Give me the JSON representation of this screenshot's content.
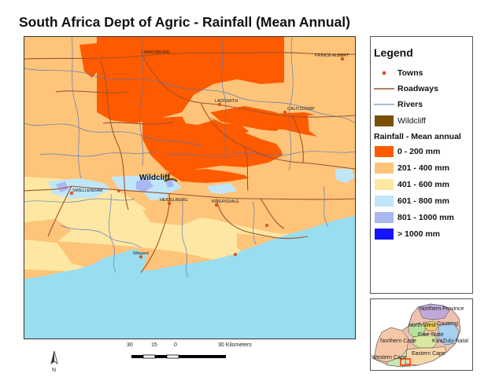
{
  "title": "South Africa Dept of Agric - Rainfall (Mean Annual)",
  "map": {
    "towns": [
      {
        "name": "LAINGSBURG"
      },
      {
        "name": "PRINCE ALBERT"
      },
      {
        "name": "LADISMITH"
      },
      {
        "name": "CALITZDORP"
      },
      {
        "name": "SWELLENDAM"
      },
      {
        "name": "HEIDELBERG"
      },
      {
        "name": "RIVERSDALE"
      },
      {
        "name": "Witsand"
      }
    ],
    "site_label": "Wildcliff"
  },
  "legend": {
    "title": "Legend",
    "towns": "Towns",
    "roadways": "Roadways",
    "rivers": "Rivers",
    "wildcliff": "Wildcliff",
    "rainfall_heading": "Rainfall - Mean annual",
    "classes": [
      {
        "label": "0 - 200 mm",
        "color": "#fe5a00"
      },
      {
        "label": "201 - 400 mm",
        "color": "#fec47a"
      },
      {
        "label": "401 - 600 mm",
        "color": "#fde7a3"
      },
      {
        "label": "601 - 800 mm",
        "color": "#bfe6f9"
      },
      {
        "label": "801 - 1000 mm",
        "color": "#a9b7f2"
      },
      {
        "label": "> 1000 mm",
        "color": "#1414ff"
      }
    ],
    "colors": {
      "town": "#d9541e",
      "road": "#a0522d",
      "river": "#4a78c0",
      "wildcliff": "#7a4e05",
      "sea": "#99ddf0"
    }
  },
  "inset": {
    "provinces": [
      "Northern Province",
      "Gauteng",
      "North West",
      "Free State",
      "KwaZulu-Natal",
      "Northern Cape",
      "Eastern Cape",
      "Western Cape"
    ]
  },
  "scale_bar": {
    "ticks": [
      "30",
      "15",
      "0",
      "30 Kilometers"
    ]
  },
  "north_arrow": {
    "label": "N"
  }
}
